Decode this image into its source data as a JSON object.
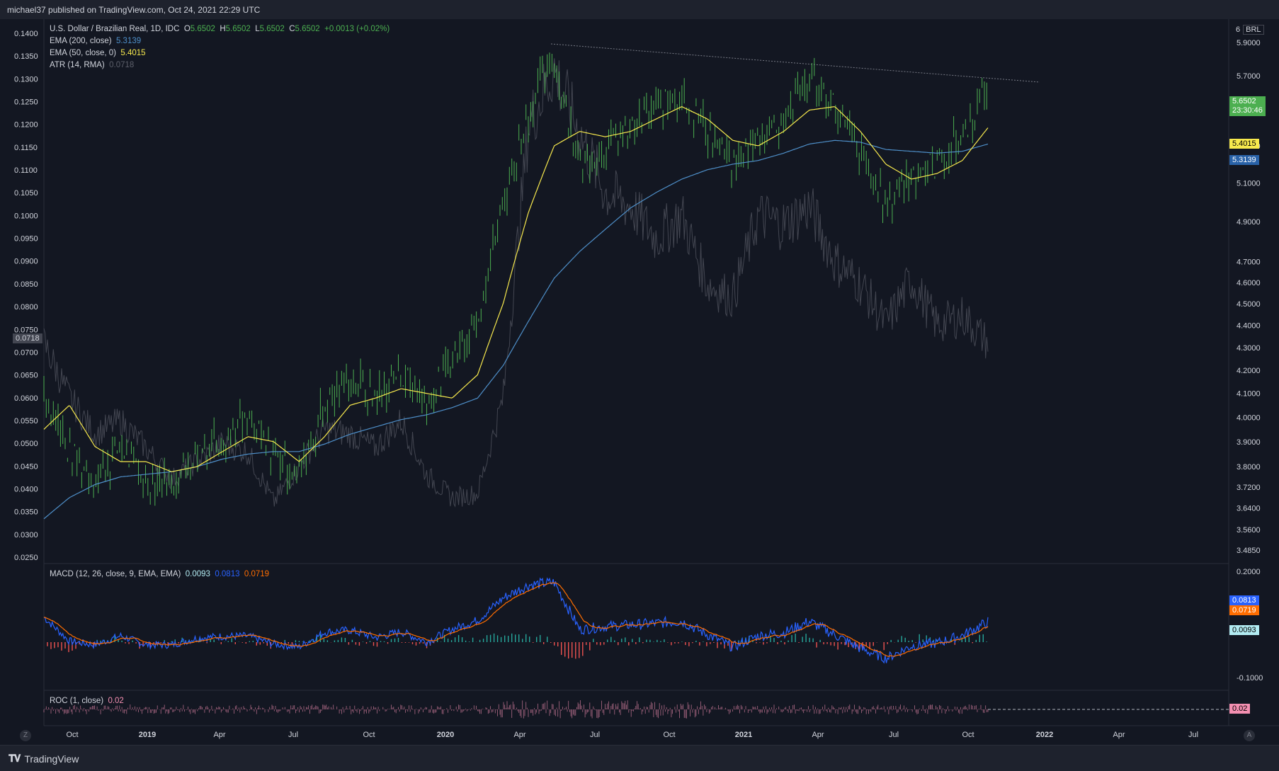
{
  "header": {
    "published": "michael37 published on TradingView.com, Oct 24, 2021 22:29 UTC"
  },
  "footer": {
    "brand": "TradingView",
    "z_button": "Z",
    "a_button": "A"
  },
  "legend": {
    "symbol": "U.S. Dollar / Brazilian Real, 1D, IDC",
    "o_label": "O",
    "o_value": "5.6502",
    "h_label": "H",
    "h_value": "5.6502",
    "l_label": "L",
    "l_value": "5.6502",
    "c_label": "C",
    "c_value": "5.6502",
    "change": "+0.0013 (+0.02%)",
    "ema200_label": "EMA (200, close)",
    "ema200_value": "5.3139",
    "ema50_label": "EMA (50, close, 0)",
    "ema50_value": "5.4015",
    "atr_label": "ATR (14, RMA)",
    "atr_value": "0.0718",
    "macd_label": "MACD (12, 26, close, 9, EMA, EMA)",
    "macd_hist": "0.0093",
    "macd_line": "0.0813",
    "macd_signal": "0.0719",
    "roc_label": "ROC (1, close)",
    "roc_value": "0.02"
  },
  "right_axis": {
    "currency": "BRL",
    "six": "6",
    "ticks": [
      "5.9000",
      "5.7000",
      "5.5000",
      "5.3000",
      "5.1000",
      "4.9000",
      "4.7000",
      "4.6000",
      "4.5000",
      "4.4000",
      "4.3000",
      "4.2000",
      "4.1000",
      "4.0000",
      "3.9000",
      "3.8000",
      "3.7200",
      "3.6400",
      "3.5600",
      "3.4850"
    ],
    "last_price": "5.6502",
    "countdown": "23:30:46",
    "macd_ticks": [
      "0.2000",
      "-0.1000"
    ]
  },
  "left_axis": {
    "ticks": [
      "0.1400",
      "0.1350",
      "0.1300",
      "0.1250",
      "0.1200",
      "0.1150",
      "0.1100",
      "0.1050",
      "0.1000",
      "0.0950",
      "0.0900",
      "0.0850",
      "0.0800",
      "0.0750",
      "0.0700",
      "0.0650",
      "0.0600",
      "0.0550",
      "0.0500",
      "0.0450",
      "0.0400",
      "0.0350",
      "0.0300",
      "0.0250"
    ],
    "atr_tag": "0.0718"
  },
  "time_axis": {
    "labels": [
      "Oct",
      "2019",
      "Apr",
      "Jul",
      "Oct",
      "2020",
      "Apr",
      "Jul",
      "Oct",
      "2021",
      "Apr",
      "Jul",
      "Oct",
      "2022",
      "Apr",
      "Jul"
    ]
  },
  "colors": {
    "up": "#4caf50",
    "ema50": "#f7e94d",
    "ema200": "#4e8fc9",
    "atr": "#434651",
    "macd": "#2962ff",
    "signal": "#ff6d00",
    "hist_up": "#26a69a",
    "hist_down": "#ef5350",
    "roc": "#f48fb1"
  },
  "chart_data": {
    "type": "line",
    "x": [
      "2018-09",
      "2018-10",
      "2018-11",
      "2018-12",
      "2019-01",
      "2019-02",
      "2019-03",
      "2019-04",
      "2019-05",
      "2019-06",
      "2019-07",
      "2019-08",
      "2019-09",
      "2019-10",
      "2019-11",
      "2019-12",
      "2020-01",
      "2020-02",
      "2020-03",
      "2020-04",
      "2020-05",
      "2020-06",
      "2020-07",
      "2020-08",
      "2020-09",
      "2020-10",
      "2020-11",
      "2020-12",
      "2021-01",
      "2021-02",
      "2021-03",
      "2021-04",
      "2021-05",
      "2021-06",
      "2021-07",
      "2021-08",
      "2021-09",
      "2021-10"
    ],
    "series": [
      {
        "name": "U.S. Dollar / Brazilian Real",
        "values": [
          4.12,
          3.85,
          3.75,
          3.88,
          3.75,
          3.74,
          3.86,
          3.93,
          3.97,
          3.85,
          3.77,
          4.05,
          4.16,
          4.08,
          4.2,
          4.05,
          4.25,
          4.45,
          5.0,
          5.5,
          5.8,
          5.2,
          5.3,
          5.4,
          5.5,
          5.6,
          5.4,
          5.18,
          5.35,
          5.45,
          5.7,
          5.52,
          5.25,
          5.0,
          5.15,
          5.2,
          5.35,
          5.65
        ]
      },
      {
        "name": "EMA (200, close)",
        "values": [
          3.6,
          3.68,
          3.73,
          3.76,
          3.77,
          3.78,
          3.8,
          3.83,
          3.85,
          3.86,
          3.86,
          3.89,
          3.93,
          3.96,
          3.99,
          4.01,
          4.04,
          4.08,
          4.22,
          4.42,
          4.62,
          4.75,
          4.86,
          4.97,
          5.05,
          5.12,
          5.17,
          5.2,
          5.22,
          5.26,
          5.31,
          5.33,
          5.32,
          5.28,
          5.27,
          5.26,
          5.27,
          5.31
        ]
      },
      {
        "name": "EMA (50, close, 0)",
        "values": [
          3.95,
          4.05,
          3.88,
          3.82,
          3.82,
          3.78,
          3.8,
          3.86,
          3.92,
          3.9,
          3.82,
          3.92,
          4.05,
          4.08,
          4.12,
          4.1,
          4.08,
          4.18,
          4.5,
          4.95,
          5.3,
          5.38,
          5.35,
          5.38,
          5.45,
          5.52,
          5.45,
          5.33,
          5.3,
          5.38,
          5.5,
          5.52,
          5.38,
          5.2,
          5.12,
          5.15,
          5.22,
          5.4
        ]
      },
      {
        "name": "ATR (14, RMA)",
        "values": [
          0.072,
          0.06,
          0.052,
          0.055,
          0.049,
          0.042,
          0.046,
          0.05,
          0.048,
          0.037,
          0.045,
          0.053,
          0.052,
          0.049,
          0.055,
          0.043,
          0.038,
          0.039,
          0.06,
          0.12,
          0.132,
          0.118,
          0.105,
          0.102,
          0.095,
          0.1,
          0.085,
          0.082,
          0.1,
          0.098,
          0.102,
          0.09,
          0.085,
          0.076,
          0.086,
          0.076,
          0.078,
          0.072
        ]
      }
    ],
    "ylim": [
      3.485,
      6.0
    ],
    "atr_ylim": [
      0.025,
      0.14
    ],
    "macd_ylim": [
      -0.12,
      0.2
    ]
  }
}
